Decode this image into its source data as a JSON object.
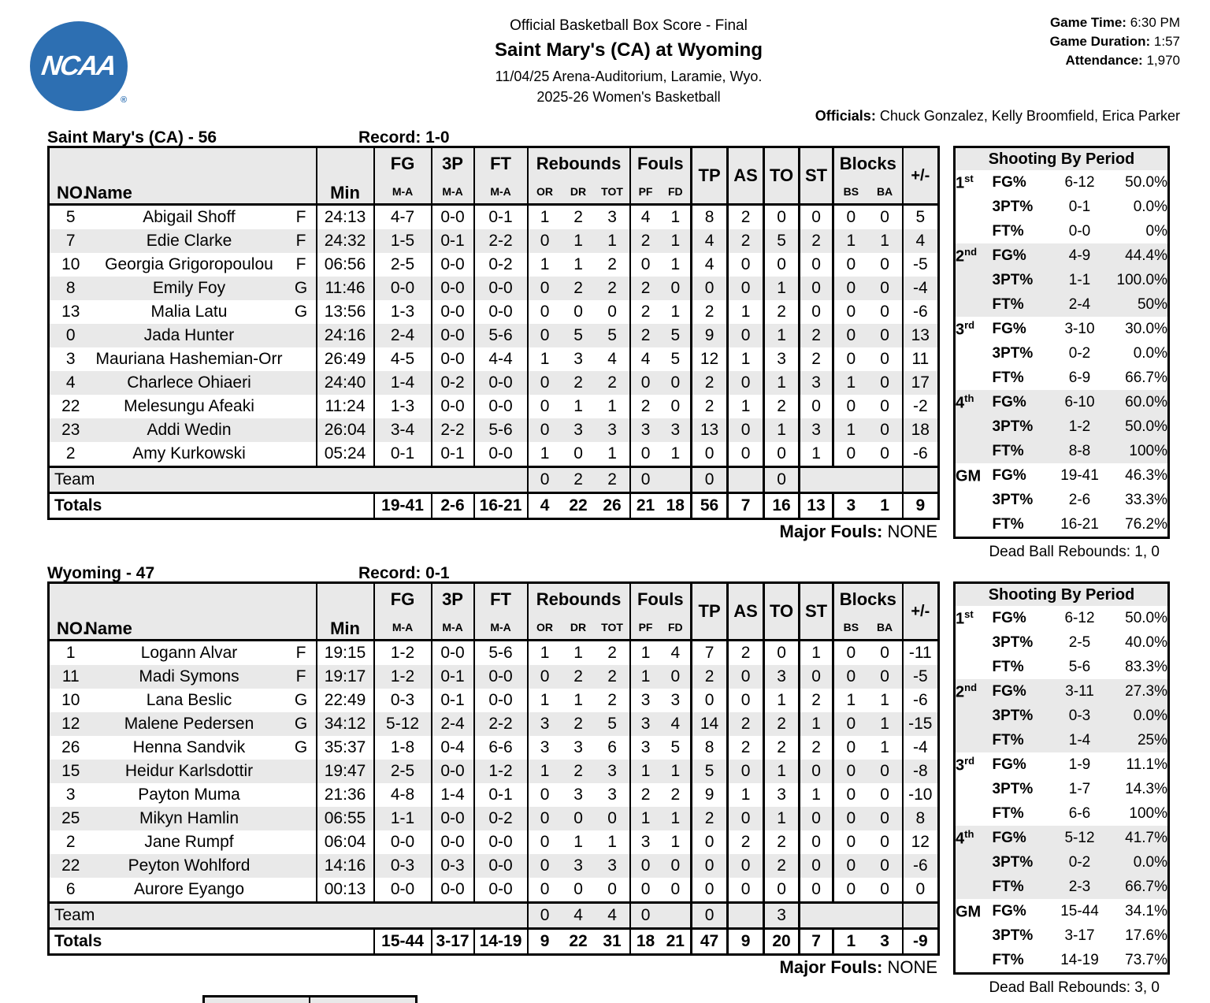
{
  "colors": {
    "ncaa_blue": "#2d6fb2",
    "row_alt": "#e9e9e9"
  },
  "logo": {
    "text": "NCAA",
    "reg_mark": "®"
  },
  "header": {
    "report_title": "Official Basketball Box Score - Final",
    "matchup": "Saint Mary's (CA) at Wyoming",
    "venue_line": "11/04/25 Arena-Auditorium, Laramie, Wyo.",
    "season_line": "2025-26 Women's Basketball",
    "game_time_label": "Game Time:",
    "game_time": "6:30 PM",
    "game_duration_label": "Game Duration:",
    "game_duration": "1:57",
    "attendance_label": "Attendance:",
    "attendance": "1,970",
    "officials_label": "Officials:",
    "officials": "Chuck Gonzalez, Kelly Broomfield, Erica Parker"
  },
  "labels": {
    "shooting_title": "Shooting By Period",
    "team_row": "Team",
    "totals_row": "Totals"
  },
  "table_columns": {
    "no": "NO.",
    "name": "Name",
    "min": "Min",
    "fg": "FG",
    "p3": "3P",
    "ft": "FT",
    "ma": "M-A",
    "rebounds": "Rebounds",
    "or": "OR",
    "dr": "DR",
    "tot": "TOT",
    "fouls": "Fouls",
    "pf": "PF",
    "fd": "FD",
    "tp": "TP",
    "as": "AS",
    "to": "TO",
    "st": "ST",
    "blocks": "Blocks",
    "bs": "BS",
    "ba": "BA",
    "pm": "+/-"
  },
  "teams": [
    {
      "title": "Saint Mary's (CA) - 56",
      "record": "Record: 1-0",
      "players": [
        {
          "no": "5",
          "name": "Abigail Shoff",
          "pos": "F",
          "min": "24:13",
          "fg": "4-7",
          "p3": "0-0",
          "ft": "0-1",
          "or": "1",
          "dr": "2",
          "tot": "3",
          "pf": "4",
          "fd": "1",
          "tp": "8",
          "as": "2",
          "to": "0",
          "st": "0",
          "bs": "0",
          "ba": "0",
          "pm": "5"
        },
        {
          "no": "7",
          "name": "Edie Clarke",
          "pos": "F",
          "min": "24:32",
          "fg": "1-5",
          "p3": "0-1",
          "ft": "2-2",
          "or": "0",
          "dr": "1",
          "tot": "1",
          "pf": "2",
          "fd": "1",
          "tp": "4",
          "as": "2",
          "to": "5",
          "st": "2",
          "bs": "1",
          "ba": "1",
          "pm": "4"
        },
        {
          "no": "10",
          "name": "Georgia Grigoropoulou",
          "pos": "F",
          "min": "06:56",
          "fg": "2-5",
          "p3": "0-0",
          "ft": "0-2",
          "or": "1",
          "dr": "1",
          "tot": "2",
          "pf": "0",
          "fd": "1",
          "tp": "4",
          "as": "0",
          "to": "0",
          "st": "0",
          "bs": "0",
          "ba": "0",
          "pm": "-5"
        },
        {
          "no": "8",
          "name": "Emily Foy",
          "pos": "G",
          "min": "11:46",
          "fg": "0-0",
          "p3": "0-0",
          "ft": "0-0",
          "or": "0",
          "dr": "2",
          "tot": "2",
          "pf": "2",
          "fd": "0",
          "tp": "0",
          "as": "0",
          "to": "1",
          "st": "0",
          "bs": "0",
          "ba": "0",
          "pm": "-4"
        },
        {
          "no": "13",
          "name": "Malia Latu",
          "pos": "G",
          "min": "13:56",
          "fg": "1-3",
          "p3": "0-0",
          "ft": "0-0",
          "or": "0",
          "dr": "0",
          "tot": "0",
          "pf": "2",
          "fd": "1",
          "tp": "2",
          "as": "1",
          "to": "2",
          "st": "0",
          "bs": "0",
          "ba": "0",
          "pm": "-6"
        },
        {
          "no": "0",
          "name": "Jada Hunter",
          "pos": "",
          "min": "24:16",
          "fg": "2-4",
          "p3": "0-0",
          "ft": "5-6",
          "or": "0",
          "dr": "5",
          "tot": "5",
          "pf": "2",
          "fd": "5",
          "tp": "9",
          "as": "0",
          "to": "1",
          "st": "2",
          "bs": "0",
          "ba": "0",
          "pm": "13"
        },
        {
          "no": "3",
          "name": "Mauriana Hashemian-Orr",
          "pos": "",
          "min": "26:49",
          "fg": "4-5",
          "p3": "0-0",
          "ft": "4-4",
          "or": "1",
          "dr": "3",
          "tot": "4",
          "pf": "4",
          "fd": "5",
          "tp": "12",
          "as": "1",
          "to": "3",
          "st": "2",
          "bs": "0",
          "ba": "0",
          "pm": "11"
        },
        {
          "no": "4",
          "name": "Charlece Ohiaeri",
          "pos": "",
          "min": "24:40",
          "fg": "1-4",
          "p3": "0-2",
          "ft": "0-0",
          "or": "0",
          "dr": "2",
          "tot": "2",
          "pf": "0",
          "fd": "0",
          "tp": "2",
          "as": "0",
          "to": "1",
          "st": "3",
          "bs": "1",
          "ba": "0",
          "pm": "17"
        },
        {
          "no": "22",
          "name": "Melesungu Afeaki",
          "pos": "",
          "min": "11:24",
          "fg": "1-3",
          "p3": "0-0",
          "ft": "0-0",
          "or": "0",
          "dr": "1",
          "tot": "1",
          "pf": "2",
          "fd": "0",
          "tp": "2",
          "as": "1",
          "to": "2",
          "st": "0",
          "bs": "0",
          "ba": "0",
          "pm": "-2"
        },
        {
          "no": "23",
          "name": "Addi Wedin",
          "pos": "",
          "min": "26:04",
          "fg": "3-4",
          "p3": "2-2",
          "ft": "5-6",
          "or": "0",
          "dr": "3",
          "tot": "3",
          "pf": "3",
          "fd": "3",
          "tp": "13",
          "as": "0",
          "to": "1",
          "st": "3",
          "bs": "1",
          "ba": "0",
          "pm": "18"
        },
        {
          "no": "2",
          "name": "Amy Kurkowski",
          "pos": "",
          "min": "05:24",
          "fg": "0-1",
          "p3": "0-1",
          "ft": "0-0",
          "or": "1",
          "dr": "0",
          "tot": "1",
          "pf": "0",
          "fd": "1",
          "tp": "0",
          "as": "0",
          "to": "0",
          "st": "1",
          "bs": "0",
          "ba": "0",
          "pm": "-6"
        }
      ],
      "team_row": {
        "or": "0",
        "dr": "2",
        "tot": "2",
        "pf": "0",
        "fd": "",
        "tp": "0",
        "as": "",
        "to": "0"
      },
      "totals": {
        "fg": "19-41",
        "p3": "2-6",
        "ft": "16-21",
        "or": "4",
        "dr": "22",
        "tot": "26",
        "pf": "21",
        "fd": "18",
        "tp": "56",
        "as": "7",
        "to": "16",
        "st": "13",
        "bs": "3",
        "ba": "1",
        "pm": "9"
      },
      "major_fouls_label": "Major Fouls:",
      "major_fouls": "NONE",
      "shooting": [
        {
          "period": "1",
          "sup": "st",
          "rows": [
            [
              "FG%",
              "6-12",
              "50.0%"
            ],
            [
              "3PT%",
              "0-1",
              "0.0%"
            ],
            [
              "FT%",
              "0-0",
              "0%"
            ]
          ]
        },
        {
          "period": "2",
          "sup": "nd",
          "rows": [
            [
              "FG%",
              "4-9",
              "44.4%"
            ],
            [
              "3PT%",
              "1-1",
              "100.0%"
            ],
            [
              "FT%",
              "2-4",
              "50%"
            ]
          ]
        },
        {
          "period": "3",
          "sup": "rd",
          "rows": [
            [
              "FG%",
              "3-10",
              "30.0%"
            ],
            [
              "3PT%",
              "0-2",
              "0.0%"
            ],
            [
              "FT%",
              "6-9",
              "66.7%"
            ]
          ]
        },
        {
          "period": "4",
          "sup": "th",
          "rows": [
            [
              "FG%",
              "6-10",
              "60.0%"
            ],
            [
              "3PT%",
              "1-2",
              "50.0%"
            ],
            [
              "FT%",
              "8-8",
              "100%"
            ]
          ]
        },
        {
          "period": "GM",
          "sup": "",
          "rows": [
            [
              "FG%",
              "19-41",
              "46.3%"
            ],
            [
              "3PT%",
              "2-6",
              "33.3%"
            ],
            [
              "FT%",
              "16-21",
              "76.2%"
            ]
          ]
        }
      ],
      "dead_ball_rebounds": "Dead Ball Rebounds: 1, 0"
    },
    {
      "title": "Wyoming - 47",
      "record": "Record: 0-1",
      "players": [
        {
          "no": "1",
          "name": "Logann Alvar",
          "pos": "F",
          "min": "19:15",
          "fg": "1-2",
          "p3": "0-0",
          "ft": "5-6",
          "or": "1",
          "dr": "1",
          "tot": "2",
          "pf": "1",
          "fd": "4",
          "tp": "7",
          "as": "2",
          "to": "0",
          "st": "1",
          "bs": "0",
          "ba": "0",
          "pm": "-11"
        },
        {
          "no": "11",
          "name": "Madi Symons",
          "pos": "F",
          "min": "19:17",
          "fg": "1-2",
          "p3": "0-1",
          "ft": "0-0",
          "or": "0",
          "dr": "2",
          "tot": "2",
          "pf": "1",
          "fd": "0",
          "tp": "2",
          "as": "0",
          "to": "3",
          "st": "0",
          "bs": "0",
          "ba": "0",
          "pm": "-5"
        },
        {
          "no": "10",
          "name": "Lana Beslic",
          "pos": "G",
          "min": "22:49",
          "fg": "0-3",
          "p3": "0-1",
          "ft": "0-0",
          "or": "1",
          "dr": "1",
          "tot": "2",
          "pf": "3",
          "fd": "3",
          "tp": "0",
          "as": "0",
          "to": "1",
          "st": "2",
          "bs": "1",
          "ba": "1",
          "pm": "-6"
        },
        {
          "no": "12",
          "name": "Malene Pedersen",
          "pos": "G",
          "min": "34:12",
          "fg": "5-12",
          "p3": "2-4",
          "ft": "2-2",
          "or": "3",
          "dr": "2",
          "tot": "5",
          "pf": "3",
          "fd": "4",
          "tp": "14",
          "as": "2",
          "to": "2",
          "st": "1",
          "bs": "0",
          "ba": "1",
          "pm": "-15"
        },
        {
          "no": "26",
          "name": "Henna Sandvik",
          "pos": "G",
          "min": "35:37",
          "fg": "1-8",
          "p3": "0-4",
          "ft": "6-6",
          "or": "3",
          "dr": "3",
          "tot": "6",
          "pf": "3",
          "fd": "5",
          "tp": "8",
          "as": "2",
          "to": "2",
          "st": "2",
          "bs": "0",
          "ba": "1",
          "pm": "-4"
        },
        {
          "no": "15",
          "name": "Heidur Karlsdottir",
          "pos": "",
          "min": "19:47",
          "fg": "2-5",
          "p3": "0-0",
          "ft": "1-2",
          "or": "1",
          "dr": "2",
          "tot": "3",
          "pf": "1",
          "fd": "1",
          "tp": "5",
          "as": "0",
          "to": "1",
          "st": "0",
          "bs": "0",
          "ba": "0",
          "pm": "-8"
        },
        {
          "no": "3",
          "name": "Payton Muma",
          "pos": "",
          "min": "21:36",
          "fg": "4-8",
          "p3": "1-4",
          "ft": "0-1",
          "or": "0",
          "dr": "3",
          "tot": "3",
          "pf": "2",
          "fd": "2",
          "tp": "9",
          "as": "1",
          "to": "3",
          "st": "1",
          "bs": "0",
          "ba": "0",
          "pm": "-10"
        },
        {
          "no": "25",
          "name": "Mikyn Hamlin",
          "pos": "",
          "min": "06:55",
          "fg": "1-1",
          "p3": "0-0",
          "ft": "0-2",
          "or": "0",
          "dr": "0",
          "tot": "0",
          "pf": "1",
          "fd": "1",
          "tp": "2",
          "as": "0",
          "to": "1",
          "st": "0",
          "bs": "0",
          "ba": "0",
          "pm": "8"
        },
        {
          "no": "2",
          "name": "Jane Rumpf",
          "pos": "",
          "min": "06:04",
          "fg": "0-0",
          "p3": "0-0",
          "ft": "0-0",
          "or": "0",
          "dr": "1",
          "tot": "1",
          "pf": "3",
          "fd": "1",
          "tp": "0",
          "as": "2",
          "to": "2",
          "st": "0",
          "bs": "0",
          "ba": "0",
          "pm": "12"
        },
        {
          "no": "22",
          "name": "Peyton Wohlford",
          "pos": "",
          "min": "14:16",
          "fg": "0-3",
          "p3": "0-3",
          "ft": "0-0",
          "or": "0",
          "dr": "3",
          "tot": "3",
          "pf": "0",
          "fd": "0",
          "tp": "0",
          "as": "0",
          "to": "2",
          "st": "0",
          "bs": "0",
          "ba": "0",
          "pm": "-6"
        },
        {
          "no": "6",
          "name": "Aurore Eyango",
          "pos": "",
          "min": "00:13",
          "fg": "0-0",
          "p3": "0-0",
          "ft": "0-0",
          "or": "0",
          "dr": "0",
          "tot": "0",
          "pf": "0",
          "fd": "0",
          "tp": "0",
          "as": "0",
          "to": "0",
          "st": "0",
          "bs": "0",
          "ba": "0",
          "pm": "0"
        }
      ],
      "team_row": {
        "or": "0",
        "dr": "4",
        "tot": "4",
        "pf": "0",
        "fd": "",
        "tp": "0",
        "as": "",
        "to": "3"
      },
      "totals": {
        "fg": "15-44",
        "p3": "3-17",
        "ft": "14-19",
        "or": "9",
        "dr": "22",
        "tot": "31",
        "pf": "18",
        "fd": "21",
        "tp": "47",
        "as": "9",
        "to": "20",
        "st": "7",
        "bs": "1",
        "ba": "3",
        "pm": "-9"
      },
      "major_fouls_label": "Major Fouls:",
      "major_fouls": "NONE",
      "shooting": [
        {
          "period": "1",
          "sup": "st",
          "rows": [
            [
              "FG%",
              "6-12",
              "50.0%"
            ],
            [
              "3PT%",
              "2-5",
              "40.0%"
            ],
            [
              "FT%",
              "5-6",
              "83.3%"
            ]
          ]
        },
        {
          "period": "2",
          "sup": "nd",
          "rows": [
            [
              "FG%",
              "3-11",
              "27.3%"
            ],
            [
              "3PT%",
              "0-3",
              "0.0%"
            ],
            [
              "FT%",
              "1-4",
              "25%"
            ]
          ]
        },
        {
          "period": "3",
          "sup": "rd",
          "rows": [
            [
              "FG%",
              "1-9",
              "11.1%"
            ],
            [
              "3PT%",
              "1-7",
              "14.3%"
            ],
            [
              "FT%",
              "6-6",
              "100%"
            ]
          ]
        },
        {
          "period": "4",
          "sup": "th",
          "rows": [
            [
              "FG%",
              "5-12",
              "41.7%"
            ],
            [
              "3PT%",
              "0-2",
              "0.0%"
            ],
            [
              "FT%",
              "2-3",
              "66.7%"
            ]
          ]
        },
        {
          "period": "GM",
          "sup": "",
          "rows": [
            [
              "FG%",
              "15-44",
              "34.1%"
            ],
            [
              "3PT%",
              "3-17",
              "17.6%"
            ],
            [
              "FT%",
              "14-19",
              "73.7%"
            ]
          ]
        }
      ],
      "dead_ball_rebounds": "Dead Ball Rebounds: 3, 0"
    }
  ]
}
